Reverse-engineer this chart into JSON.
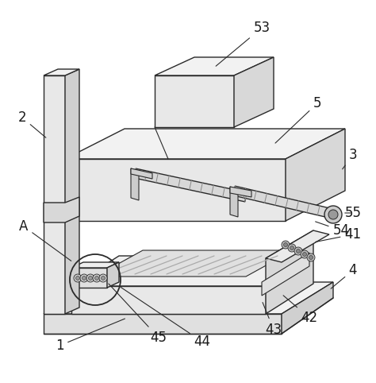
{
  "bg_color": "#ffffff",
  "line_color": "#2a2a2a",
  "figsize": [
    4.74,
    4.82
  ],
  "dpi": 100,
  "label_fontsize": 12
}
